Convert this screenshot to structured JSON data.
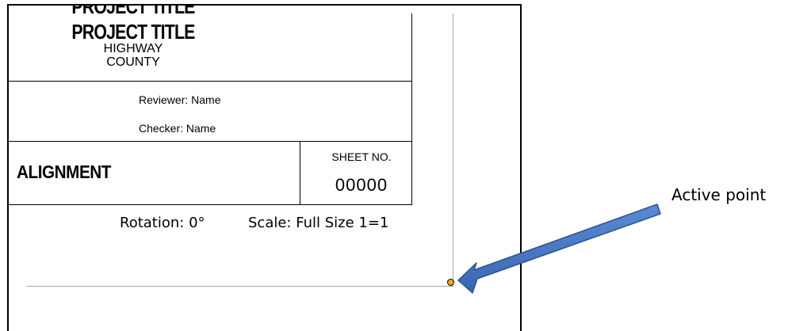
{
  "title_block": {
    "project_title_top": "PROJECT TITLE",
    "project_title": "PROJECT TITLE",
    "highway": "HIGHWAY",
    "county": "COUNTY",
    "reviewer": "Reviewer: Name",
    "checker": "Checker:  Name",
    "alignment": "ALIGNMENT",
    "sheet_label": "SHEET NO.",
    "sheet_number": "00000"
  },
  "status": {
    "rotation": "Rotation: 0°",
    "scale": "Scale: Full Size 1=1"
  },
  "annotation": {
    "label": "Active point",
    "arrow_color": "#4472c4",
    "point_color": "#f5a623"
  }
}
